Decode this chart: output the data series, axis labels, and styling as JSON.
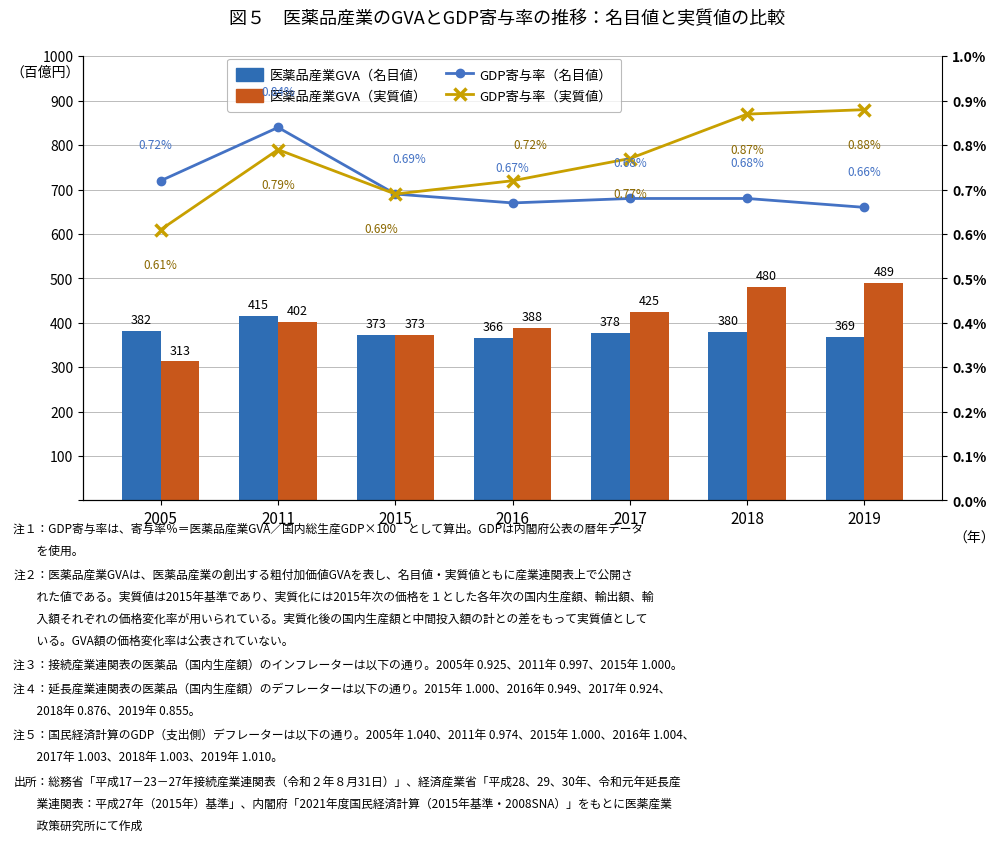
{
  "title": "図５　医薬品産業のGVAとGDP寄与率の推移：名目値と実質値の比較",
  "years": [
    2005,
    2011,
    2015,
    2016,
    2017,
    2018,
    2019
  ],
  "gva_nominal": [
    382,
    415,
    373,
    366,
    378,
    380,
    369
  ],
  "gva_real": [
    313,
    402,
    373,
    388,
    425,
    480,
    489
  ],
  "gdp_nominal_pct": [
    0.0072,
    0.0084,
    0.0069,
    0.0067,
    0.0068,
    0.0068,
    0.0066
  ],
  "gdp_real_pct": [
    0.0061,
    0.0079,
    0.0069,
    0.0072,
    0.0077,
    0.0087,
    0.0088
  ],
  "gdp_nominal_labels": [
    "0.72%",
    "0.84%",
    "0.69%",
    "0.67%",
    "0.68%",
    "0.68%",
    "0.66%"
  ],
  "gdp_real_labels": [
    "0.61%",
    "0.79%",
    "0.69%",
    "0.72%",
    "0.77%",
    "0.87%",
    "0.88%"
  ],
  "bar_color_nominal": "#2E6DB4",
  "bar_color_real": "#C8571B",
  "line_color_nominal": "#4472C4",
  "line_color_real": "#C8A000",
  "ylabel_left": "（百億円）",
  "ylim_left": [
    0,
    1000
  ],
  "ylim_right": [
    0.0,
    0.01
  ],
  "yticks_left": [
    0,
    100,
    200,
    300,
    400,
    500,
    600,
    700,
    800,
    900,
    1000
  ],
  "yticks_right": [
    0.0,
    0.001,
    0.002,
    0.003,
    0.004,
    0.005,
    0.006,
    0.007,
    0.008,
    0.009,
    0.01
  ],
  "ytick_right_labels": [
    "0.0%",
    "0.1%",
    "0.2%",
    "0.3%",
    "0.4%",
    "0.5%",
    "0.6%",
    "0.7%",
    "0.8%",
    "0.9%",
    "1.0%"
  ],
  "legend_labels": [
    "医薬品産業GVA（名目値）",
    "医薬品産業GVA（実質値）",
    "GDP寄与率（名目値）",
    "GDP寄与率（実質値）"
  ],
  "xlabel_suffix": "（年）",
  "notes": [
    "注１：GDP寄与率は、寄与率％＝医薬品産業GVA／国内総生産GDP×100　として算出。GDPは内閣府公表の暦年データを使用。",
    "注２：医薬品産業GVAは、医薬品産業の創出する粗付加価値GVAを表し、名目値・実質値ともに産業連関表上で公開された値である。実質値は2015年基準であり、実質化には2015年次の価格を１とした各年次の国内生産額、輸出額、輸入額それぞれの価格変化率が用いられている。実質化後の国内生産額と中間投入額の計との差をもって実質値としている。GVA額の価格変化率は公表されていない。",
    "注３：接続産業連関表の医薬品（国内生産額）のインフレーターは以下の通り。2005年 0.925、2011年 0.997、2015年 1.000。",
    "注４：延長産業連関表の医薬品（国内生産額）のデフレーターは以下の通り。2015年 1.000、2016年 0.949、2017年 0.924、2018年 0.876、2019年 0.855。",
    "注５：国民経済計算のGDP（支出側）デフレーターは以下の通り。2005年 1.040、2011年 0.974、2015年 1.000、2016年 1.004、2017年 1.003、2018年 1.003、2019年 1.010。",
    "出所：総務省「平成17－23－27年接続産業連関表（令和２年８月31日）」、経済産業省「平成28、29、30年、令和元年延長産業連関表：平成27年（2015年）基準」、内閣府「2021年度国民経済計算（2015年基準・2008SNA）」をもとに医薬産業政策研究所にて作成"
  ],
  "note_wraps": [
    [
      "注１：GDP寄与率は、寄与率％＝医薬品産業GVA／国内総生産GDP×100　として算出。GDPは内閣府公表の暦年データ",
      "　　を使用。"
    ],
    [
      "注２：医薬品産業GVAは、医薬品産業の創出する粗付加価値GVAを表し、名目値・実質値ともに産業連関表上で公開さ",
      "　　れた値である。実質値は2015年基準であり、実質化には2015年次の価格を１とした各年次の国内生産額、輸出額、輸",
      "　　入額それぞれの価格変化率が用いられている。実質化後の国内生産額と中間投入額の計との差をもって実質値として",
      "　　いる。GVA額の価格変化率は公表されていない。"
    ],
    [
      "注３：接続産業連関表の医薬品（国内生産額）のインフレーターは以下の通り。2005年 0.925、2011年 0.997、2015年 1.000。"
    ],
    [
      "注４：延長産業連関表の医薬品（国内生産額）のデフレーターは以下の通り。2015年 1.000、2016年 0.949、2017年 0.924、",
      "　　2018年 0.876、2019年 0.855。"
    ],
    [
      "注５：国民経済計算のGDP（支出側）デフレーターは以下の通り。2005年 1.040、2011年 0.974、2015年 1.000、2016年 1.004、",
      "　　2017年 1.003、2018年 1.003、2019年 1.010。"
    ],
    [
      "出所：総務省「平成17－23－27年接続産業連関表（令和２年８月31日）」、経済産業省「平成28、29、30年、令和元年延長産",
      "　　業連関表：平成27年（2015年）基準」、内閣府「2021年度国民経済計算（2015年基準・2008SNA）」をもとに医薬産業",
      "　　政策研究所にて作成"
    ]
  ]
}
